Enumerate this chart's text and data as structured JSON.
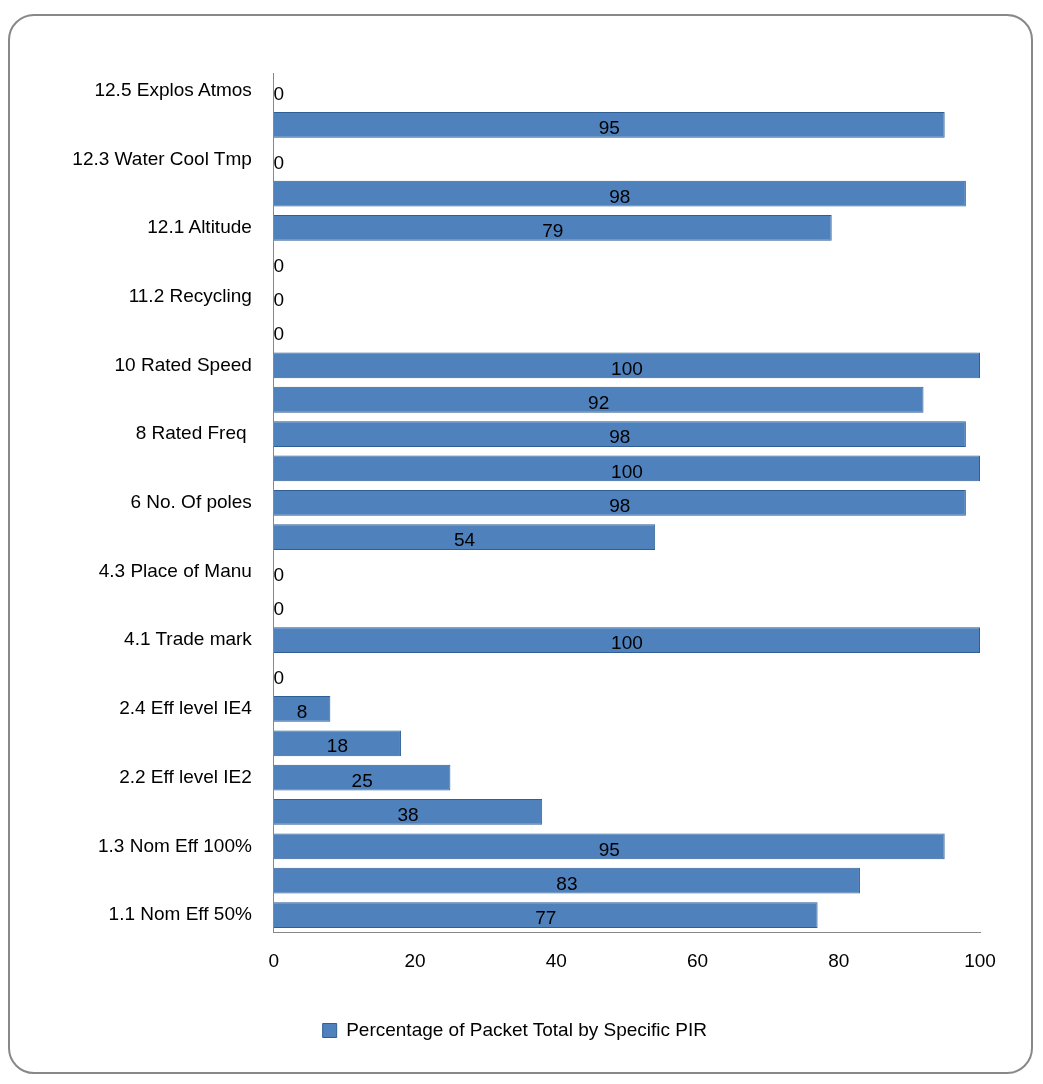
{
  "chart_data": {
    "type": "bar",
    "orientation": "horizontal",
    "categories": [
      "12.5 Explos Atmos",
      null,
      "12.3 Water Cool Tmp",
      null,
      "12.1 Altitude",
      null,
      "11.2 Recycling",
      null,
      "10 Rated Speed",
      null,
      "8 Rated Freq ",
      null,
      "6 No. Of poles",
      null,
      "4.3 Place of Manu",
      null,
      "4.1 Trade mark",
      null,
      "2.4 Eff level IE4",
      null,
      "2.2 Eff level IE2",
      null,
      "1.3 Nom Eff 100%",
      null,
      "1.1 Nom Eff 50%"
    ],
    "series": [
      {
        "name": "Percentage of Packet Total by Specific PIR",
        "color": "#4f81bd",
        "values": [
          0,
          95,
          0,
          98,
          79,
          0,
          0,
          0,
          100,
          92,
          98,
          100,
          98,
          54,
          0,
          0,
          100,
          0,
          8,
          18,
          25,
          38,
          95,
          83,
          77
        ]
      }
    ],
    "xlim": [
      0,
      100
    ],
    "xticks": [
      0,
      20,
      40,
      60,
      80,
      100
    ],
    "grid": false,
    "legend": "bottom",
    "data_labels": true
  }
}
